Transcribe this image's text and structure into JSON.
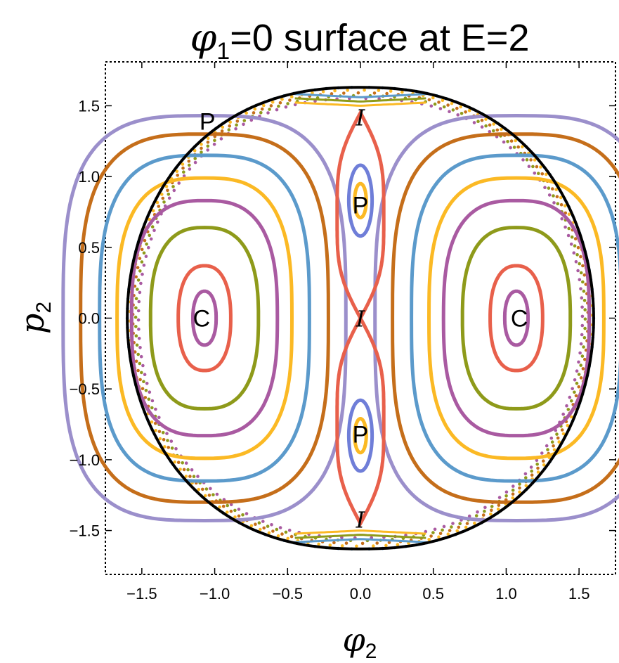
{
  "chart_data": {
    "type": "scatter",
    "title": {
      "phi": "φ",
      "subscript": "1",
      "rest": "=0 surface at E=2"
    },
    "xlabel": {
      "symbol": "φ",
      "subscript": "2"
    },
    "ylabel": {
      "symbol": "p",
      "subscript": "2"
    },
    "xlim": [
      -1.75,
      1.75
    ],
    "ylim": [
      -1.81,
      1.81
    ],
    "xticks": [
      -1.5,
      -1.0,
      -0.5,
      0.0,
      0.5,
      1.0,
      1.5
    ],
    "xtick_labels": [
      "−1.5",
      "−1.0",
      "−0.5",
      "0.0",
      "0.5",
      "1.0",
      "1.5"
    ],
    "yticks": [
      -1.5,
      -1.0,
      -0.5,
      0.0,
      0.5,
      1.0,
      1.5
    ],
    "ytick_labels": [
      "−1.5",
      "−1.0",
      "−0.5",
      "0.0",
      "0.5",
      "1.0",
      "1.5"
    ],
    "grid": false,
    "frame": "dashed",
    "boundary": {
      "color": "#000000",
      "x_extent": 1.6,
      "y_extent": 1.63
    },
    "orbit_colors": [
      "#E8604B",
      "#A95AA1",
      "#8E9A1A",
      "#5B9ACB",
      "#FBB924",
      "#C56E1A",
      "#9B8FCB",
      "#6F7ED8"
    ],
    "libration_orbits_right": [
      {
        "center": [
          1.07,
          0.0
        ],
        "rx": 0.08,
        "ry": 0.19,
        "color": "#A95AA1"
      },
      {
        "center": [
          1.07,
          0.0
        ],
        "rx": 0.18,
        "ry": 0.37,
        "color": "#E8604B"
      },
      {
        "center": [
          1.07,
          0.0
        ],
        "rx": 0.37,
        "ry": 0.64,
        "color": "#8E9A1A"
      },
      {
        "center": [
          1.07,
          0.0
        ],
        "rx": 0.5,
        "ry": 0.83,
        "color": "#A95AA1"
      },
      {
        "center": [
          1.07,
          0.0
        ],
        "rx": 0.6,
        "ry": 0.99,
        "color": "#FBB924"
      },
      {
        "center": [
          1.07,
          0.0
        ],
        "rx": 0.72,
        "ry": 1.15,
        "color": "#5B9ACB"
      },
      {
        "center": [
          1.07,
          0.0
        ],
        "rx": 0.85,
        "ry": 1.3,
        "color": "#C56E1A"
      },
      {
        "center": [
          1.07,
          0.0
        ],
        "rx": 0.97,
        "ry": 1.43,
        "color": "#9B8FCB"
      }
    ],
    "island_orbits_upper": [
      {
        "center": [
          0.0,
          0.83
        ],
        "rx": 0.04,
        "ry": 0.12,
        "color": "#FBB924"
      },
      {
        "center": [
          0.0,
          0.83
        ],
        "rx": 0.08,
        "ry": 0.25,
        "color": "#6F7ED8"
      }
    ],
    "separatrix_color": "#E8604B",
    "boundary_dots_colors": [
      "#5B9ACB",
      "#FBB924",
      "#C56E1A",
      "#8E9A1A",
      "#A95AA1"
    ],
    "annotations": [
      {
        "text": "P",
        "x": -1.05,
        "y": 1.39,
        "kind": "periodic"
      },
      {
        "text": "P",
        "x": 0.0,
        "y": 0.8,
        "kind": "periodic"
      },
      {
        "text": "P",
        "x": 0.0,
        "y": -0.82,
        "kind": "periodic"
      },
      {
        "text": "C",
        "x": -1.09,
        "y": 0.0,
        "kind": "center"
      },
      {
        "text": "C",
        "x": 1.09,
        "y": 0.0,
        "kind": "center"
      },
      {
        "text": "I",
        "x": 0.0,
        "y": 1.42,
        "kind": "hyperbolic"
      },
      {
        "text": "I",
        "x": 0.0,
        "y": 0.0,
        "kind": "hyperbolic"
      },
      {
        "text": "I",
        "x": 0.0,
        "y": -1.42,
        "kind": "hyperbolic"
      }
    ]
  }
}
